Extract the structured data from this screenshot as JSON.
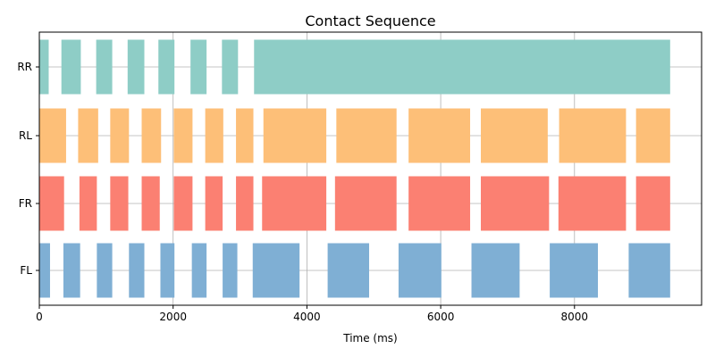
{
  "chart_data": {
    "type": "broken-barh",
    "title": "Contact Sequence",
    "xlabel": "Time (ms)",
    "ylabel": "",
    "xlim": [
      0,
      9900
    ],
    "xticks": [
      0,
      2000,
      4000,
      6000,
      8000
    ],
    "xtick_labels": [
      "0",
      "2000",
      "4000",
      "6000",
      "8000"
    ],
    "grid": true,
    "categories": [
      "FL",
      "FR",
      "RL",
      "RR"
    ],
    "series": [
      {
        "name": "FL",
        "color": "#7fafd4",
        "intervals": [
          [
            0,
            160
          ],
          [
            360,
            610
          ],
          [
            860,
            1090
          ],
          [
            1340,
            1570
          ],
          [
            1810,
            2020
          ],
          [
            2280,
            2500
          ],
          [
            2740,
            2960
          ],
          [
            3190,
            3890
          ],
          [
            4310,
            4930
          ],
          [
            5370,
            6010
          ],
          [
            6460,
            7180
          ],
          [
            7630,
            8350
          ],
          [
            8810,
            9430
          ]
        ]
      },
      {
        "name": "FR",
        "color": "#fb8072",
        "intervals": [
          [
            0,
            370
          ],
          [
            600,
            860
          ],
          [
            1060,
            1330
          ],
          [
            1530,
            1800
          ],
          [
            2010,
            2290
          ],
          [
            2480,
            2740
          ],
          [
            2940,
            3200
          ],
          [
            3330,
            4290
          ],
          [
            4420,
            5340
          ],
          [
            5520,
            6440
          ],
          [
            6600,
            7620
          ],
          [
            7760,
            8770
          ],
          [
            8920,
            9430
          ]
        ]
      },
      {
        "name": "RL",
        "color": "#fdbf78",
        "intervals": [
          [
            0,
            400
          ],
          [
            580,
            880
          ],
          [
            1060,
            1340
          ],
          [
            1530,
            1820
          ],
          [
            2010,
            2290
          ],
          [
            2480,
            2750
          ],
          [
            2940,
            3200
          ],
          [
            3350,
            4290
          ],
          [
            4440,
            5340
          ],
          [
            5520,
            6440
          ],
          [
            6600,
            7600
          ],
          [
            7770,
            8770
          ],
          [
            8920,
            9430
          ]
        ]
      },
      {
        "name": "RR",
        "color": "#8ecdc6",
        "intervals": [
          [
            0,
            140
          ],
          [
            330,
            620
          ],
          [
            850,
            1090
          ],
          [
            1320,
            1570
          ],
          [
            1780,
            2020
          ],
          [
            2260,
            2500
          ],
          [
            2730,
            2970
          ],
          [
            3210,
            9430
          ]
        ]
      }
    ]
  }
}
